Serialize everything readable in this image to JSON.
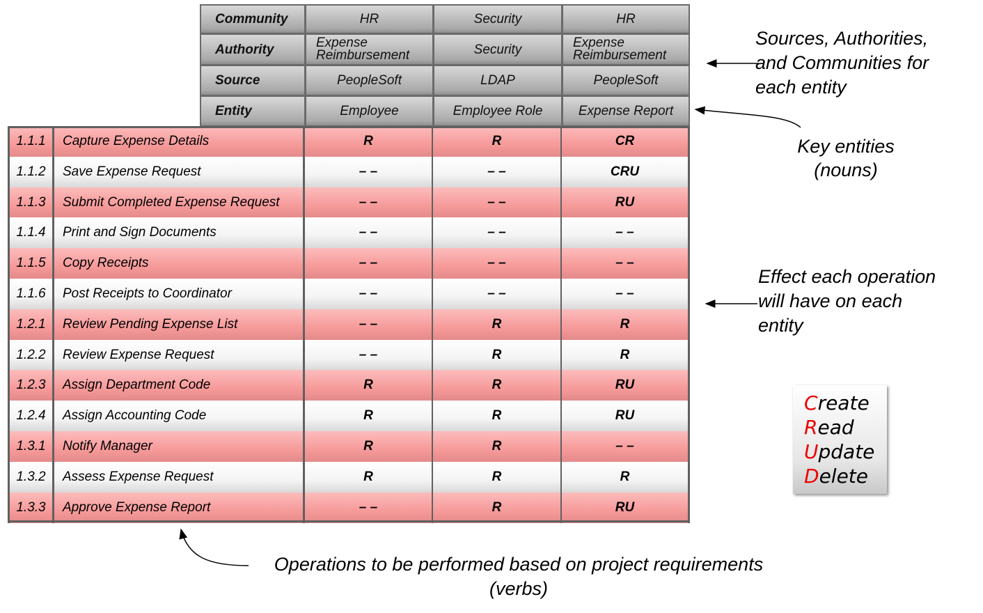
{
  "header": {
    "labels": [
      "Community",
      "Authority",
      "Source",
      "Entity"
    ],
    "columns": [
      {
        "community": "HR",
        "authority": "Expense Reimbursement",
        "source": "PeopleSoft",
        "entity": "Employee"
      },
      {
        "community": "Security",
        "authority": "Security",
        "source": "LDAP",
        "entity": "Employee Role"
      },
      {
        "community": "HR",
        "authority": "Expense Reimbursement",
        "source": "PeopleSoft",
        "entity": "Expense Report"
      }
    ]
  },
  "rows": [
    {
      "num": "1.1.1",
      "name": "Capture Expense Details",
      "v": [
        "R",
        "R",
        "CR"
      ]
    },
    {
      "num": "1.1.2",
      "name": "Save Expense Request",
      "v": [
        "– –",
        "– –",
        "CRU"
      ]
    },
    {
      "num": "1.1.3",
      "name": "Submit Completed Expense Request",
      "v": [
        "– –",
        "– –",
        "RU"
      ]
    },
    {
      "num": "1.1.4",
      "name": "Print and Sign Documents",
      "v": [
        "– –",
        "– –",
        "– –"
      ]
    },
    {
      "num": "1.1.5",
      "name": "Copy Receipts",
      "v": [
        "– –",
        "– –",
        "– –"
      ]
    },
    {
      "num": "1.1.6",
      "name": "Post Receipts to Coordinator",
      "v": [
        "– –",
        "– –",
        "– –"
      ]
    },
    {
      "num": "1.2.1",
      "name": "Review Pending Expense List",
      "v": [
        "– –",
        "R",
        "R"
      ]
    },
    {
      "num": "1.2.2",
      "name": "Review Expense Request",
      "v": [
        "– –",
        "R",
        "R"
      ]
    },
    {
      "num": "1.2.3",
      "name": "Assign Department Code",
      "v": [
        "R",
        "R",
        "RU"
      ]
    },
    {
      "num": "1.2.4",
      "name": "Assign Accounting Code",
      "v": [
        "R",
        "R",
        "RU"
      ]
    },
    {
      "num": "1.3.1",
      "name": "Notify Manager",
      "v": [
        "R",
        "R",
        "– –"
      ]
    },
    {
      "num": "1.3.2",
      "name": "Assess Expense Request",
      "v": [
        "R",
        "R",
        "R"
      ]
    },
    {
      "num": "1.3.3",
      "name": "Approve Expense Report",
      "v": [
        "– –",
        "R",
        "RU"
      ]
    }
  ],
  "notes": {
    "sources": "Sources, Authorities, and Communities for each entity",
    "entities": "Key entities (nouns)",
    "effect": "Effect each operation will have on each entity",
    "operations": "Operations to be performed based on project requirements (verbs)"
  },
  "legend": [
    {
      "k": "C",
      "rest": "reate"
    },
    {
      "k": "R",
      "rest": "ead"
    },
    {
      "k": "U",
      "rest": "pdate"
    },
    {
      "k": "D",
      "rest": "elete"
    }
  ],
  "colors": {
    "pink_row": "#f69a9a",
    "white_row": "#f4f4f4",
    "header": "#a9a9a9",
    "legend_key": "#e00000"
  }
}
